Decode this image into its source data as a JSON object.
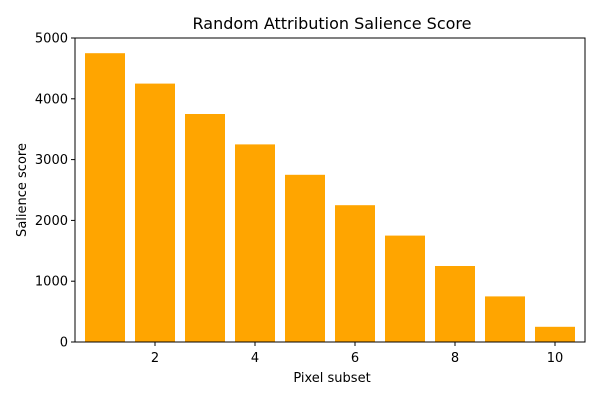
{
  "chart_data": {
    "type": "bar",
    "title": "Random Attribution Salience Score",
    "xlabel": "Pixel subset",
    "ylabel": "Salience score",
    "x": [
      1,
      2,
      3,
      4,
      5,
      6,
      7,
      8,
      9,
      10
    ],
    "values": [
      4750,
      4250,
      3750,
      3250,
      2750,
      2250,
      1750,
      1250,
      750,
      250
    ],
    "xlim": [
      0.4,
      10.6
    ],
    "ylim": [
      0,
      5000
    ],
    "xticks": [
      2,
      4,
      6,
      8,
      10
    ],
    "xtick_labels": [
      "2",
      "4",
      "6",
      "8",
      "10"
    ],
    "yticks": [
      0,
      1000,
      2000,
      3000,
      4000,
      5000
    ],
    "ytick_labels": [
      "0",
      "1000",
      "2000",
      "3000",
      "4000",
      "5000"
    ],
    "bar_width": 0.8,
    "bar_color": "#ffa500",
    "grid": false,
    "legend": "none"
  }
}
